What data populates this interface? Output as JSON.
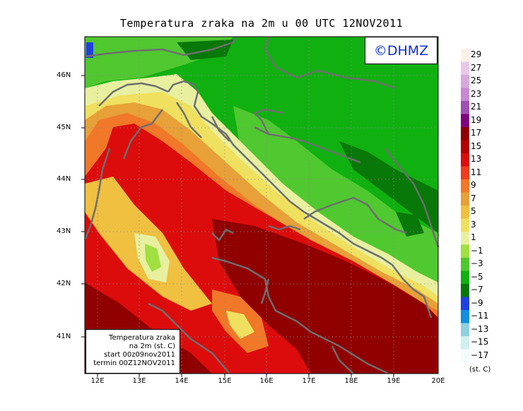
{
  "title": "Temperatura zraka na 2m u 00 UTC 12NOV2011",
  "watermark": "©DHMZ",
  "info_box": {
    "line1": "Temperatura zraka",
    "line2": "na 2m (st. C)",
    "line3": "start 00z09nov2011",
    "line4": "termin 00Z12NOV2011"
  },
  "lat_labels": [
    "46N",
    "45N",
    "44N",
    "43N",
    "42N",
    "41N"
  ],
  "lon_labels": [
    "12E",
    "13E",
    "14E",
    "15E",
    "16E",
    "17E",
    "18E",
    "19E",
    "20E"
  ],
  "legend": {
    "unit": "(st. C)",
    "levels": [
      "29",
      "27",
      "25",
      "23",
      "21",
      "19",
      "17",
      "15",
      "13",
      "11",
      "9",
      "7",
      "5",
      "3",
      "1",
      "−1",
      "−3",
      "−5",
      "−7",
      "−9",
      "−11",
      "−13",
      "−15",
      "−17"
    ],
    "colors": [
      "#fff0e6",
      "#e8c8e8",
      "#d8a8dc",
      "#c888d4",
      "#a050b4",
      "#800080",
      "#900000",
      "#b40000",
      "#dc0c0c",
      "#f03c1c",
      "#f07828",
      "#e8a038",
      "#f0c040",
      "#f0e060",
      "#e8f0a0",
      "#a0e040",
      "#50c830",
      "#10b010",
      "#087808",
      "#2040e0",
      "#1090e0",
      "#90d0e0",
      "#d0eef0",
      "#f4fcfc"
    ]
  },
  "colors": {
    "coastline": "#6e6e6e",
    "watermark_text": "#1030c8"
  }
}
